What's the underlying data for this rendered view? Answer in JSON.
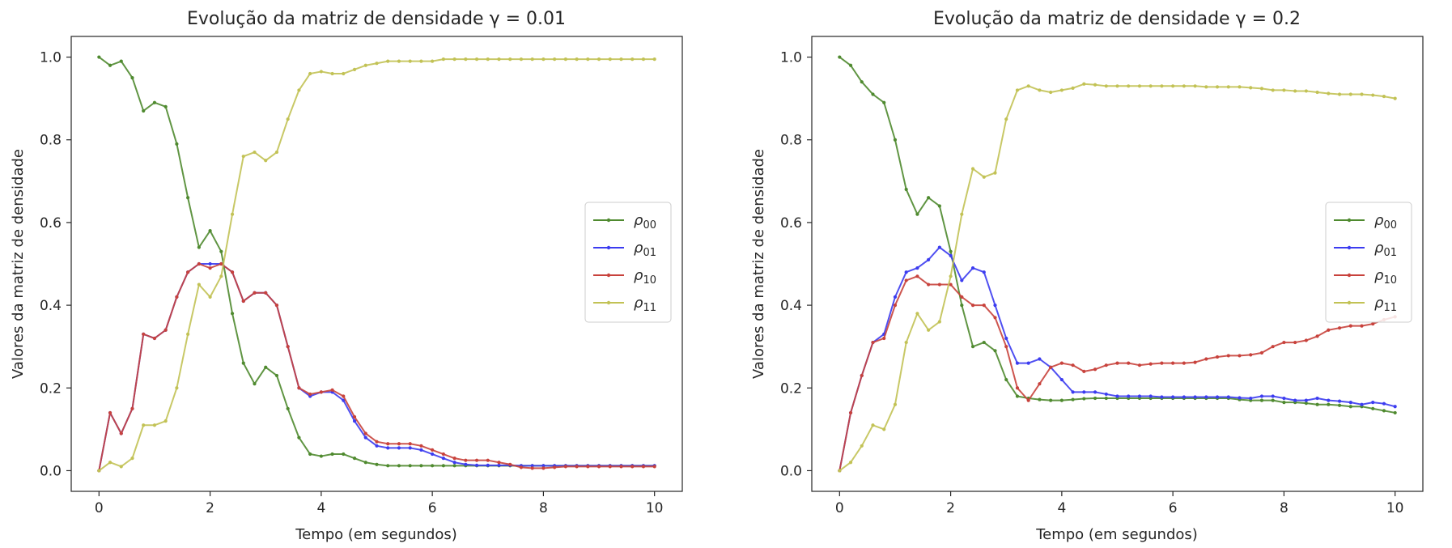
{
  "chart_data": [
    {
      "type": "line",
      "title": "Evolução da matriz de densidade γ = 0.01",
      "xlabel": "Tempo (em segundos)",
      "ylabel": "Valores da matriz de densidade",
      "xlim": [
        -0.5,
        10.5
      ],
      "ylim": [
        -0.05,
        1.05
      ],
      "xticks": [
        "0",
        "2",
        "4",
        "6",
        "8",
        "10"
      ],
      "yticks": [
        "0.0",
        "0.2",
        "0.4",
        "0.6",
        "0.8",
        "1.0"
      ],
      "legend": "center-right",
      "x": [
        0,
        0.2,
        0.4,
        0.6,
        0.8,
        1.0,
        1.2,
        1.4,
        1.6,
        1.8,
        2.0,
        2.2,
        2.4,
        2.6,
        2.8,
        3.0,
        3.2,
        3.4,
        3.6,
        3.8,
        4.0,
        4.2,
        4.4,
        4.6,
        4.8,
        5.0,
        5.2,
        5.4,
        5.6,
        5.8,
        6.0,
        6.2,
        6.4,
        6.6,
        6.8,
        7.0,
        7.2,
        7.4,
        7.6,
        7.8,
        8.0,
        8.2,
        8.4,
        8.6,
        8.8,
        9.0,
        9.2,
        9.4,
        9.6,
        9.8,
        10.0
      ],
      "series": [
        {
          "name": "ρ",
          "subscript": "00",
          "color": "#4f8a2f",
          "values": [
            1.0,
            0.98,
            0.99,
            0.95,
            0.87,
            0.89,
            0.88,
            0.79,
            0.66,
            0.54,
            0.58,
            0.53,
            0.38,
            0.26,
            0.21,
            0.25,
            0.23,
            0.15,
            0.08,
            0.04,
            0.035,
            0.04,
            0.04,
            0.03,
            0.02,
            0.015,
            0.012,
            0.012,
            0.012,
            0.012,
            0.012,
            0.012,
            0.012,
            0.012,
            0.012,
            0.012,
            0.012,
            0.012,
            0.012,
            0.012,
            0.012,
            0.012,
            0.012,
            0.012,
            0.012,
            0.012,
            0.012,
            0.012,
            0.012,
            0.012,
            0.012
          ]
        },
        {
          "name": "ρ",
          "subscript": "01",
          "color": "#3c3cf0",
          "values": [
            0.0,
            0.14,
            0.09,
            0.15,
            0.33,
            0.32,
            0.34,
            0.42,
            0.48,
            0.5,
            0.5,
            0.5,
            0.48,
            0.41,
            0.43,
            0.43,
            0.4,
            0.3,
            0.2,
            0.18,
            0.19,
            0.19,
            0.17,
            0.12,
            0.08,
            0.06,
            0.055,
            0.055,
            0.055,
            0.05,
            0.04,
            0.03,
            0.02,
            0.015,
            0.013,
            0.013,
            0.013,
            0.013,
            0.012,
            0.012,
            0.012,
            0.012,
            0.012,
            0.012,
            0.012,
            0.012,
            0.012,
            0.012,
            0.012,
            0.012,
            0.012
          ]
        },
        {
          "name": "ρ",
          "subscript": "10",
          "color": "#c8423c",
          "values": [
            0.0,
            0.14,
            0.09,
            0.15,
            0.33,
            0.32,
            0.34,
            0.42,
            0.48,
            0.5,
            0.49,
            0.5,
            0.48,
            0.41,
            0.43,
            0.43,
            0.4,
            0.3,
            0.2,
            0.185,
            0.19,
            0.195,
            0.18,
            0.13,
            0.09,
            0.07,
            0.065,
            0.065,
            0.065,
            0.06,
            0.05,
            0.04,
            0.03,
            0.025,
            0.025,
            0.025,
            0.02,
            0.015,
            0.008,
            0.006,
            0.006,
            0.008,
            0.01,
            0.01,
            0.01,
            0.01,
            0.01,
            0.01,
            0.01,
            0.01,
            0.01
          ]
        },
        {
          "name": "ρ",
          "subscript": "11",
          "color": "#c2c255",
          "values": [
            0.0,
            0.02,
            0.01,
            0.03,
            0.11,
            0.11,
            0.12,
            0.2,
            0.33,
            0.45,
            0.42,
            0.47,
            0.62,
            0.76,
            0.77,
            0.75,
            0.77,
            0.85,
            0.92,
            0.96,
            0.965,
            0.96,
            0.96,
            0.97,
            0.98,
            0.985,
            0.99,
            0.99,
            0.99,
            0.99,
            0.99,
            0.995,
            0.995,
            0.995,
            0.995,
            0.995,
            0.995,
            0.995,
            0.995,
            0.995,
            0.995,
            0.995,
            0.995,
            0.995,
            0.995,
            0.995,
            0.995,
            0.995,
            0.995,
            0.995,
            0.995
          ]
        }
      ]
    },
    {
      "type": "line",
      "title": "Evolução da matriz de densidade γ = 0.2",
      "xlabel": "Tempo (em segundos)",
      "ylabel": "Valores da matriz de densidade",
      "xlim": [
        -0.5,
        10.5
      ],
      "ylim": [
        -0.05,
        1.05
      ],
      "xticks": [
        "0",
        "2",
        "4",
        "6",
        "8",
        "10"
      ],
      "yticks": [
        "0.0",
        "0.2",
        "0.4",
        "0.6",
        "0.8",
        "1.0"
      ],
      "legend": "center-right",
      "x": [
        0,
        0.2,
        0.4,
        0.6,
        0.8,
        1.0,
        1.2,
        1.4,
        1.6,
        1.8,
        2.0,
        2.2,
        2.4,
        2.6,
        2.8,
        3.0,
        3.2,
        3.4,
        3.6,
        3.8,
        4.0,
        4.2,
        4.4,
        4.6,
        4.8,
        5.0,
        5.2,
        5.4,
        5.6,
        5.8,
        6.0,
        6.2,
        6.4,
        6.6,
        6.8,
        7.0,
        7.2,
        7.4,
        7.6,
        7.8,
        8.0,
        8.2,
        8.4,
        8.6,
        8.8,
        9.0,
        9.2,
        9.4,
        9.6,
        9.8,
        10.0
      ],
      "series": [
        {
          "name": "ρ",
          "subscript": "00",
          "color": "#4f8a2f",
          "values": [
            1.0,
            0.98,
            0.94,
            0.91,
            0.89,
            0.8,
            0.68,
            0.62,
            0.66,
            0.64,
            0.53,
            0.4,
            0.3,
            0.31,
            0.29,
            0.22,
            0.18,
            0.175,
            0.172,
            0.17,
            0.17,
            0.172,
            0.174,
            0.175,
            0.175,
            0.175,
            0.175,
            0.175,
            0.175,
            0.175,
            0.175,
            0.175,
            0.175,
            0.175,
            0.175,
            0.175,
            0.172,
            0.17,
            0.17,
            0.17,
            0.165,
            0.165,
            0.163,
            0.16,
            0.16,
            0.158,
            0.155,
            0.155,
            0.15,
            0.145,
            0.14
          ]
        },
        {
          "name": "ρ",
          "subscript": "01",
          "color": "#3c3cf0",
          "values": [
            0.0,
            0.14,
            0.23,
            0.31,
            0.33,
            0.42,
            0.48,
            0.49,
            0.51,
            0.54,
            0.52,
            0.46,
            0.49,
            0.48,
            0.4,
            0.32,
            0.26,
            0.26,
            0.27,
            0.25,
            0.22,
            0.19,
            0.19,
            0.19,
            0.185,
            0.18,
            0.18,
            0.18,
            0.18,
            0.178,
            0.178,
            0.178,
            0.178,
            0.178,
            0.178,
            0.178,
            0.176,
            0.175,
            0.18,
            0.18,
            0.175,
            0.17,
            0.17,
            0.175,
            0.17,
            0.168,
            0.165,
            0.16,
            0.165,
            0.162,
            0.155
          ]
        },
        {
          "name": "ρ",
          "subscript": "10",
          "color": "#c8423c",
          "values": [
            0.0,
            0.14,
            0.23,
            0.31,
            0.32,
            0.4,
            0.46,
            0.47,
            0.45,
            0.45,
            0.45,
            0.42,
            0.4,
            0.4,
            0.37,
            0.3,
            0.2,
            0.17,
            0.21,
            0.25,
            0.26,
            0.255,
            0.24,
            0.245,
            0.255,
            0.26,
            0.26,
            0.255,
            0.258,
            0.26,
            0.26,
            0.26,
            0.262,
            0.27,
            0.275,
            0.278,
            0.278,
            0.28,
            0.285,
            0.3,
            0.31,
            0.31,
            0.315,
            0.325,
            0.34,
            0.345,
            0.35,
            0.35,
            0.355,
            0.365,
            0.372
          ]
        },
        {
          "name": "ρ",
          "subscript": "11",
          "color": "#c2c255",
          "values": [
            0.0,
            0.02,
            0.06,
            0.11,
            0.1,
            0.16,
            0.31,
            0.38,
            0.34,
            0.36,
            0.47,
            0.62,
            0.73,
            0.71,
            0.72,
            0.85,
            0.92,
            0.93,
            0.92,
            0.915,
            0.92,
            0.925,
            0.935,
            0.933,
            0.93,
            0.93,
            0.93,
            0.93,
            0.93,
            0.93,
            0.93,
            0.93,
            0.93,
            0.928,
            0.928,
            0.928,
            0.928,
            0.926,
            0.924,
            0.92,
            0.92,
            0.918,
            0.918,
            0.915,
            0.912,
            0.91,
            0.91,
            0.91,
            0.908,
            0.905,
            0.9
          ]
        }
      ]
    }
  ]
}
